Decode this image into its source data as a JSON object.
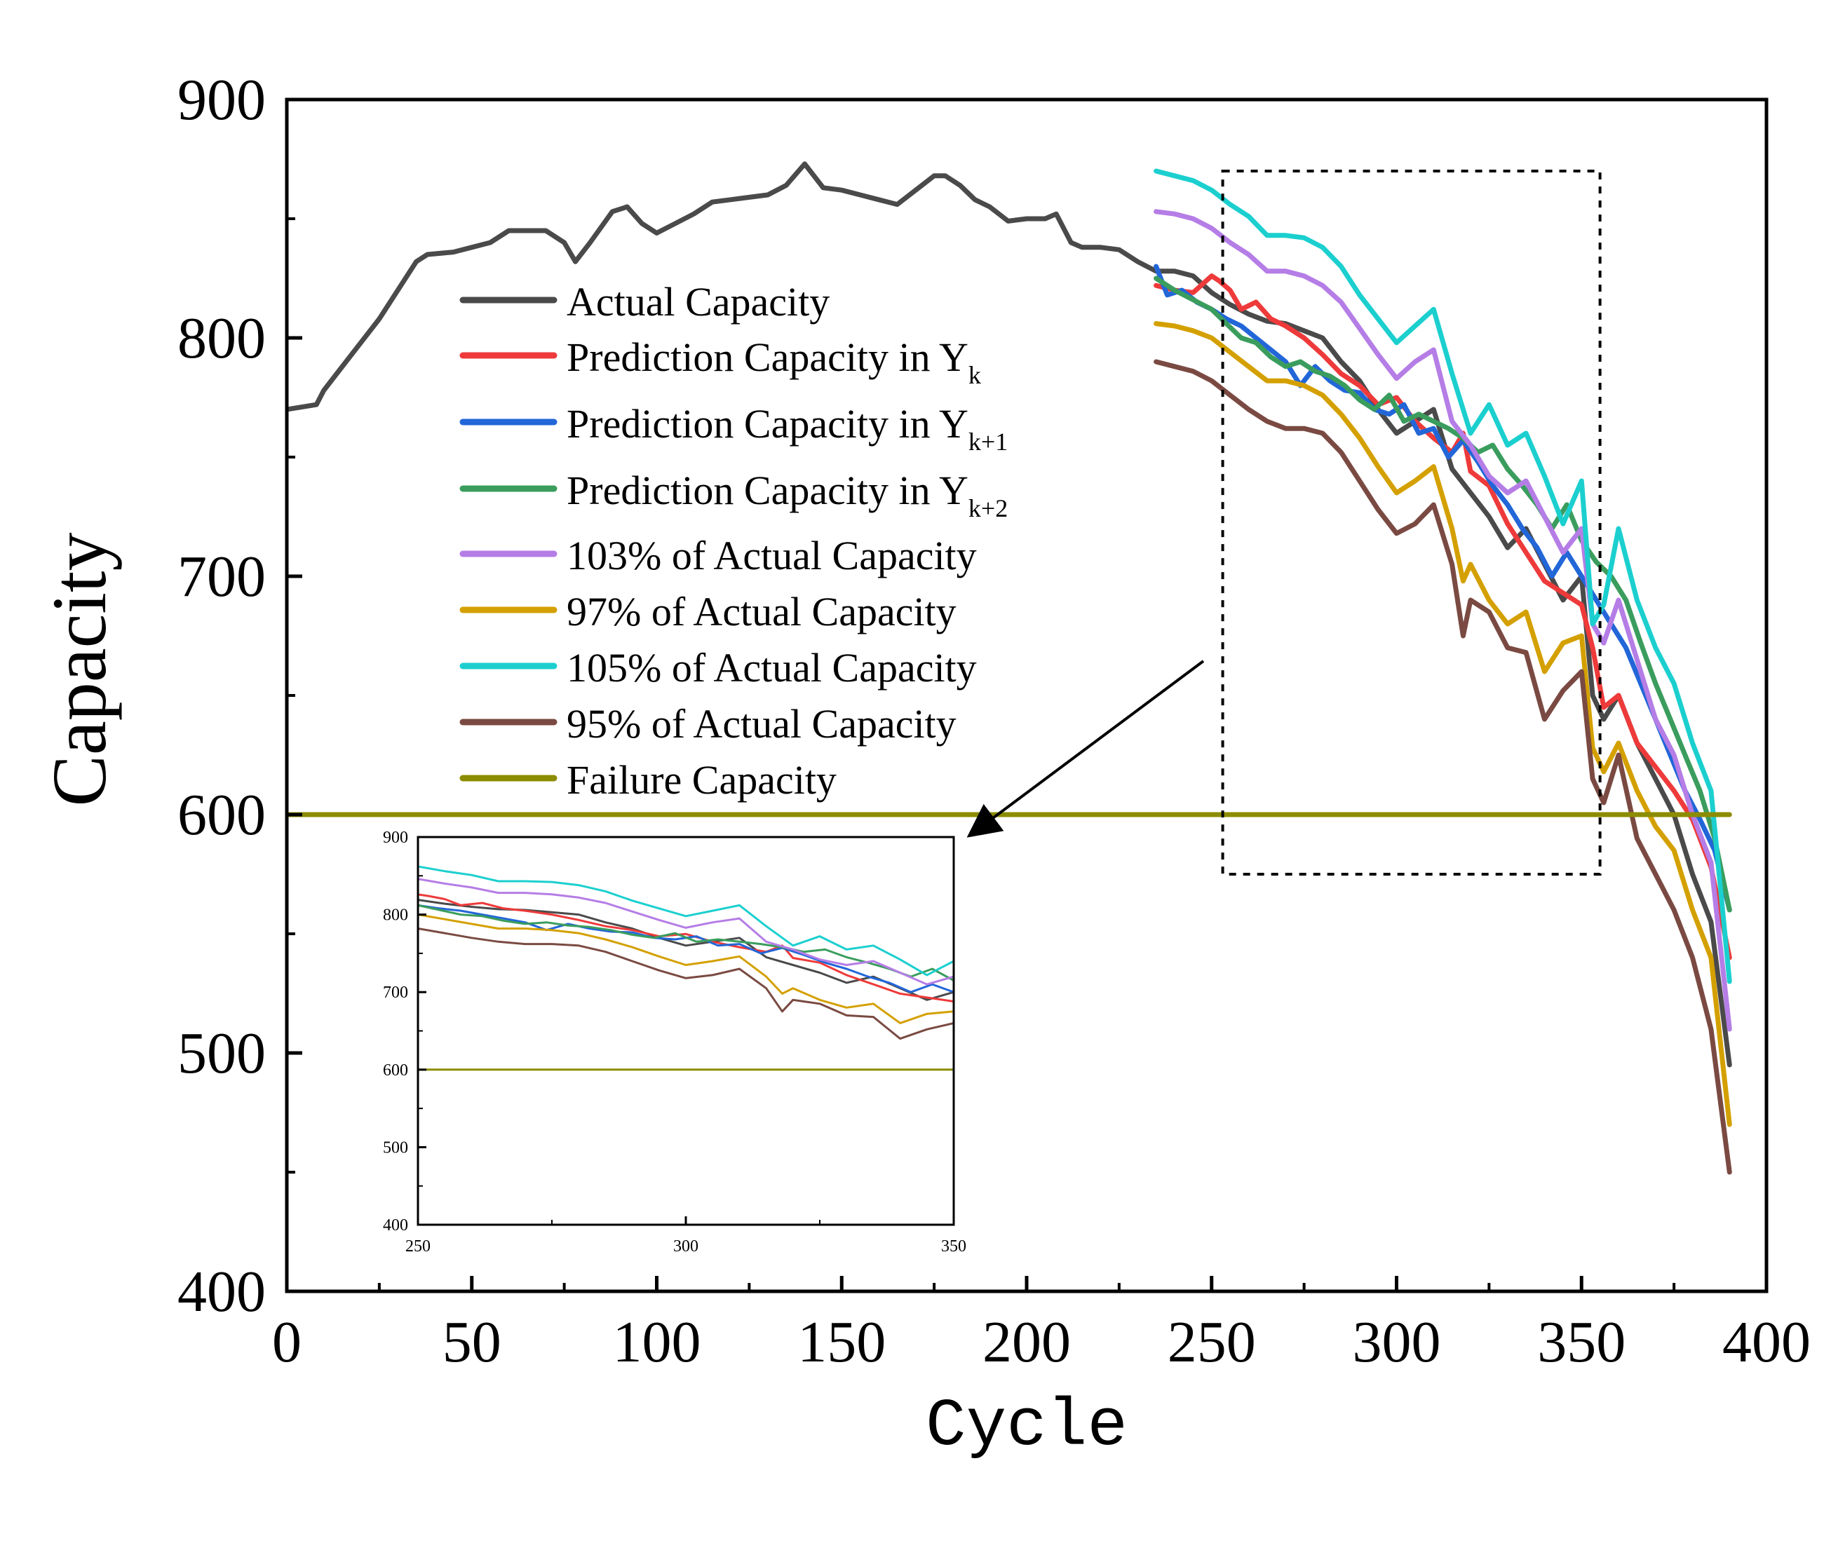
{
  "chart_data": {
    "type": "line",
    "xlabel": "Cycle",
    "ylabel": "Capacity",
    "xlim": [
      0,
      400
    ],
    "ylim": [
      400,
      900
    ],
    "xticks": [
      "0",
      "50",
      "100",
      "150",
      "200",
      "250",
      "300",
      "350",
      "400"
    ],
    "yticks": [
      "400",
      "500",
      "600",
      "700",
      "800",
      "900"
    ],
    "legend_position": "upper-left",
    "legend": [
      {
        "key": "actual",
        "label": " Actual Capacity",
        "sub": "",
        "color": "#4a4a4a"
      },
      {
        "key": "pred_k",
        "label": "Prediction Capacity in Y",
        "sub": "k",
        "color": "#ee3a3a"
      },
      {
        "key": "pred_k1",
        "label": "Prediction Capacity in Y",
        "sub": "k+1",
        "color": "#2266d8"
      },
      {
        "key": "pred_k2",
        "label": "Prediction Capacity in Y",
        "sub": "k+2",
        "color": "#3a9d5d"
      },
      {
        "key": "p103",
        "label": "103% of Actual Capacity",
        "sub": "",
        "color": "#b57de6"
      },
      {
        "key": "p97",
        "label": "97% of Actual Capacity",
        "sub": "",
        "color": "#d4a000"
      },
      {
        "key": "p105",
        "label": "105% of Actual Capacity",
        "sub": "",
        "color": "#1ccfcf"
      },
      {
        "key": "p95",
        "label": "95% of Actual Capacity",
        "sub": "",
        "color": "#7a4a42"
      },
      {
        "key": "failure",
        "label": "Failure Capacity",
        "sub": "",
        "color": "#8c8c00"
      }
    ],
    "failure_capacity": 600,
    "series": [
      {
        "name": "Actual Capacity",
        "color": "#4a4a4a",
        "x": [
          0,
          8,
          10,
          15,
          25,
          35,
          38,
          45,
          50,
          55,
          60,
          65,
          70,
          75,
          78,
          82,
          88,
          92,
          96,
          100,
          105,
          110,
          115,
          120,
          125,
          130,
          135,
          140,
          145,
          150,
          155,
          160,
          165,
          170,
          175,
          178,
          182,
          186,
          190,
          195,
          200,
          205,
          208,
          212,
          215,
          220,
          225,
          230,
          235,
          240,
          245,
          250,
          255,
          260,
          265,
          270,
          275,
          280,
          285,
          290,
          295,
          300,
          305,
          310,
          315,
          320,
          325,
          330,
          335,
          340,
          345,
          350,
          353,
          356,
          360,
          365,
          370,
          375,
          380,
          385,
          390
        ],
        "y": [
          770,
          772,
          778,
          788,
          808,
          832,
          835,
          836,
          838,
          840,
          845,
          845,
          845,
          840,
          832,
          840,
          853,
          855,
          848,
          844,
          848,
          852,
          857,
          858,
          859,
          860,
          864,
          873,
          863,
          862,
          860,
          858,
          856,
          862,
          868,
          868,
          864,
          858,
          855,
          849,
          850,
          850,
          852,
          840,
          838,
          838,
          837,
          832,
          828,
          828,
          826,
          819,
          814,
          810,
          807,
          806,
          803,
          800,
          790,
          782,
          770,
          760,
          765,
          770,
          745,
          735,
          725,
          712,
          720,
          705,
          690,
          700,
          650,
          640,
          650,
          630,
          615,
          600,
          575,
          555,
          495
        ]
      },
      {
        "name": "Prediction Capacity in Yk",
        "color": "#ee3a3a",
        "x": [
          235,
          240,
          245,
          250,
          252,
          255,
          258,
          262,
          266,
          270,
          275,
          280,
          285,
          290,
          295,
          300,
          305,
          310,
          315,
          318,
          320,
          325,
          330,
          335,
          340,
          345,
          350,
          353,
          356,
          360,
          365,
          370,
          375,
          380,
          385,
          390
        ],
        "y": [
          822,
          820,
          819,
          826,
          824,
          820,
          812,
          815,
          808,
          805,
          800,
          793,
          785,
          780,
          772,
          775,
          765,
          758,
          752,
          760,
          744,
          738,
          722,
          710,
          698,
          693,
          688,
          670,
          645,
          650,
          630,
          620,
          610,
          598,
          578,
          540
        ]
      },
      {
        "name": "Prediction Capacity in Yk+1",
        "color": "#2266d8",
        "x": [
          235,
          238,
          242,
          246,
          250,
          254,
          258,
          262,
          266,
          270,
          274,
          278,
          282,
          286,
          290,
          294,
          298,
          302,
          306,
          310,
          314,
          318,
          322,
          326,
          330,
          334,
          338,
          342,
          346,
          350,
          354,
          358,
          362,
          366,
          370,
          374,
          378,
          382,
          386,
          390
        ],
        "y": [
          830,
          818,
          820,
          815,
          812,
          808,
          805,
          800,
          795,
          790,
          780,
          788,
          782,
          778,
          777,
          770,
          768,
          772,
          760,
          762,
          750,
          757,
          748,
          738,
          730,
          720,
          712,
          700,
          710,
          700,
          690,
          680,
          670,
          655,
          640,
          625,
          610,
          598,
          585,
          560
        ]
      },
      {
        "name": "Prediction Capacity in Yk+2",
        "color": "#3a9d5d",
        "x": [
          235,
          240,
          245,
          250,
          254,
          258,
          262,
          266,
          270,
          274,
          278,
          282,
          286,
          290,
          294,
          298,
          302,
          306,
          310,
          314,
          318,
          322,
          326,
          330,
          334,
          338,
          342,
          346,
          350,
          354,
          358,
          362,
          366,
          370,
          374,
          378,
          382,
          386,
          390
        ],
        "y": [
          825,
          820,
          816,
          812,
          806,
          800,
          798,
          792,
          788,
          790,
          786,
          784,
          780,
          774,
          770,
          776,
          765,
          768,
          765,
          762,
          758,
          752,
          755,
          745,
          738,
          730,
          720,
          730,
          715,
          706,
          700,
          690,
          672,
          655,
          640,
          625,
          610,
          590,
          560
        ]
      },
      {
        "name": "103% of Actual Capacity",
        "color": "#b57de6",
        "x": [
          235,
          240,
          245,
          250,
          255,
          260,
          265,
          270,
          275,
          280,
          285,
          290,
          295,
          300,
          305,
          310,
          315,
          320,
          325,
          330,
          335,
          340,
          345,
          350,
          353,
          356,
          360,
          365,
          370,
          375,
          380,
          385,
          390
        ],
        "y": [
          853,
          852,
          850,
          846,
          840,
          835,
          828,
          828,
          826,
          822,
          815,
          804,
          793,
          783,
          790,
          795,
          765,
          755,
          742,
          735,
          740,
          725,
          710,
          720,
          680,
          672,
          690,
          665,
          640,
          625,
          600,
          580,
          510
        ]
      },
      {
        "name": "97% of Actual Capacity",
        "color": "#d4a000",
        "x": [
          235,
          240,
          245,
          250,
          255,
          260,
          265,
          270,
          275,
          280,
          285,
          290,
          295,
          300,
          305,
          310,
          315,
          318,
          320,
          325,
          330,
          335,
          340,
          345,
          350,
          353,
          356,
          360,
          365,
          370,
          375,
          380,
          385,
          390
        ],
        "y": [
          806,
          805,
          803,
          800,
          794,
          788,
          782,
          782,
          780,
          776,
          768,
          758,
          746,
          735,
          740,
          746,
          720,
          698,
          705,
          690,
          680,
          685,
          660,
          672,
          675,
          628,
          618,
          630,
          610,
          595,
          585,
          560,
          540,
          470
        ]
      },
      {
        "name": "105% of Actual Capacity",
        "color": "#1ccfcf",
        "x": [
          235,
          240,
          245,
          250,
          255,
          260,
          265,
          270,
          275,
          280,
          285,
          290,
          295,
          300,
          305,
          310,
          315,
          320,
          325,
          330,
          335,
          340,
          345,
          350,
          353,
          356,
          360,
          365,
          370,
          375,
          380,
          385,
          390
        ],
        "y": [
          870,
          868,
          866,
          862,
          856,
          851,
          843,
          843,
          842,
          838,
          830,
          818,
          808,
          798,
          805,
          812,
          785,
          760,
          772,
          755,
          760,
          742,
          722,
          740,
          680,
          688,
          720,
          690,
          670,
          655,
          630,
          610,
          530
        ]
      },
      {
        "name": "95% of Actual Capacity",
        "color": "#7a4a42",
        "x": [
          235,
          240,
          245,
          250,
          255,
          260,
          265,
          270,
          275,
          280,
          285,
          290,
          295,
          300,
          305,
          310,
          315,
          318,
          320,
          325,
          330,
          335,
          340,
          345,
          350,
          353,
          356,
          360,
          365,
          370,
          375,
          380,
          385,
          390
        ],
        "y": [
          790,
          788,
          786,
          782,
          776,
          770,
          765,
          762,
          762,
          760,
          752,
          740,
          728,
          718,
          722,
          730,
          705,
          675,
          690,
          685,
          670,
          668,
          640,
          652,
          660,
          615,
          605,
          625,
          590,
          575,
          560,
          540,
          510,
          450
        ]
      },
      {
        "name": "Failure Capacity",
        "color": "#8c8c00",
        "x": [
          0,
          390
        ],
        "y": [
          600,
          600
        ]
      }
    ],
    "inset": {
      "xlim": [
        250,
        350
      ],
      "ylim": [
        400,
        900
      ],
      "xticks": [
        "250",
        "300",
        "350"
      ],
      "yticks": [
        "400",
        "500",
        "600",
        "700",
        "800",
        "900"
      ],
      "zoom_box": {
        "x": [
          253,
          355
        ],
        "y": [
          575,
          870
        ]
      }
    }
  }
}
